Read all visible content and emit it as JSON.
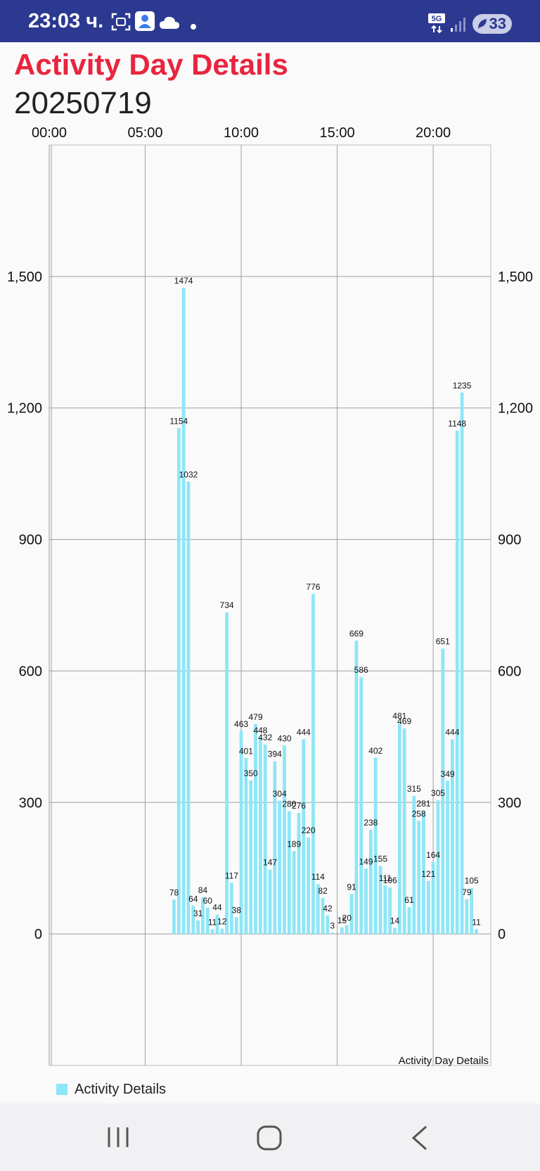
{
  "status_bar": {
    "time": "23:03 ч.",
    "network": "5G",
    "battery": "33",
    "icons": [
      "screenshot-icon",
      "account-icon",
      "cloud-icon",
      "dot-icon",
      "network-5g-icon",
      "signal-icon",
      "battery-icon"
    ]
  },
  "header": {
    "title": "Activity Day Details",
    "date": "20250719",
    "title_color": "#e8253f"
  },
  "chart_data": {
    "type": "bar",
    "title": "",
    "description_label": "Activity Day Details",
    "bar_color": "#8de6f7",
    "x_axis": {
      "position": "top",
      "unit": "minutes since 00:00",
      "range": [
        0,
        1380
      ],
      "tick_labels": [
        "00:00",
        "05:00",
        "10:00",
        "15:00",
        "20:00"
      ],
      "tick_values": [
        0,
        300,
        600,
        900,
        1200
      ]
    },
    "y_axis": {
      "range": [
        -300,
        1800
      ],
      "tick_labels": [
        "0",
        "300",
        "600",
        "900",
        "1,200",
        "1,500"
      ],
      "tick_values": [
        0,
        300,
        600,
        900,
        1200,
        1500
      ],
      "both_sides": true
    },
    "grid": true,
    "legend": {
      "placement": "bottom-left",
      "label": "Activity Details"
    },
    "bars": [
      {
        "x": 390,
        "v": 78
      },
      {
        "x": 405,
        "v": 1154
      },
      {
        "x": 420,
        "v": 1474
      },
      {
        "x": 435,
        "v": 1032
      },
      {
        "x": 450,
        "v": 64
      },
      {
        "x": 465,
        "v": 31
      },
      {
        "x": 480,
        "v": 84
      },
      {
        "x": 495,
        "v": 60
      },
      {
        "x": 510,
        "v": 11
      },
      {
        "x": 525,
        "v": 44
      },
      {
        "x": 540,
        "v": 12
      },
      {
        "x": 555,
        "v": 734
      },
      {
        "x": 570,
        "v": 117
      },
      {
        "x": 585,
        "v": 38
      },
      {
        "x": 600,
        "v": 463
      },
      {
        "x": 615,
        "v": 401
      },
      {
        "x": 630,
        "v": 350
      },
      {
        "x": 645,
        "v": 479
      },
      {
        "x": 660,
        "v": 448
      },
      {
        "x": 675,
        "v": 432
      },
      {
        "x": 690,
        "v": 147
      },
      {
        "x": 705,
        "v": 394
      },
      {
        "x": 720,
        "v": 304
      },
      {
        "x": 735,
        "v": 430
      },
      {
        "x": 750,
        "v": 280
      },
      {
        "x": 765,
        "v": 189
      },
      {
        "x": 780,
        "v": 276
      },
      {
        "x": 795,
        "v": 444
      },
      {
        "x": 810,
        "v": 220
      },
      {
        "x": 825,
        "v": 776
      },
      {
        "x": 840,
        "v": 114
      },
      {
        "x": 855,
        "v": 82
      },
      {
        "x": 870,
        "v": 42
      },
      {
        "x": 885,
        "v": 3
      },
      {
        "x": 915,
        "v": 15
      },
      {
        "x": 930,
        "v": 20
      },
      {
        "x": 945,
        "v": 91
      },
      {
        "x": 960,
        "v": 669
      },
      {
        "x": 975,
        "v": 586
      },
      {
        "x": 990,
        "v": 149
      },
      {
        "x": 1005,
        "v": 238
      },
      {
        "x": 1020,
        "v": 402
      },
      {
        "x": 1035,
        "v": 155
      },
      {
        "x": 1050,
        "v": 111
      },
      {
        "x": 1065,
        "v": 106
      },
      {
        "x": 1080,
        "v": 14
      },
      {
        "x": 1095,
        "v": 481
      },
      {
        "x": 1110,
        "v": 469
      },
      {
        "x": 1125,
        "v": 61
      },
      {
        "x": 1140,
        "v": 315
      },
      {
        "x": 1155,
        "v": 258
      },
      {
        "x": 1170,
        "v": 281
      },
      {
        "x": 1185,
        "v": 121
      },
      {
        "x": 1200,
        "v": 164
      },
      {
        "x": 1215,
        "v": 305
      },
      {
        "x": 1230,
        "v": 651
      },
      {
        "x": 1245,
        "v": 349
      },
      {
        "x": 1260,
        "v": 444
      },
      {
        "x": 1275,
        "v": 1148
      },
      {
        "x": 1290,
        "v": 1235
      },
      {
        "x": 1305,
        "v": 79
      },
      {
        "x": 1320,
        "v": 105
      },
      {
        "x": 1335,
        "v": 11
      }
    ]
  },
  "nav_bar": {
    "buttons": [
      "recent-apps",
      "home",
      "back"
    ]
  }
}
